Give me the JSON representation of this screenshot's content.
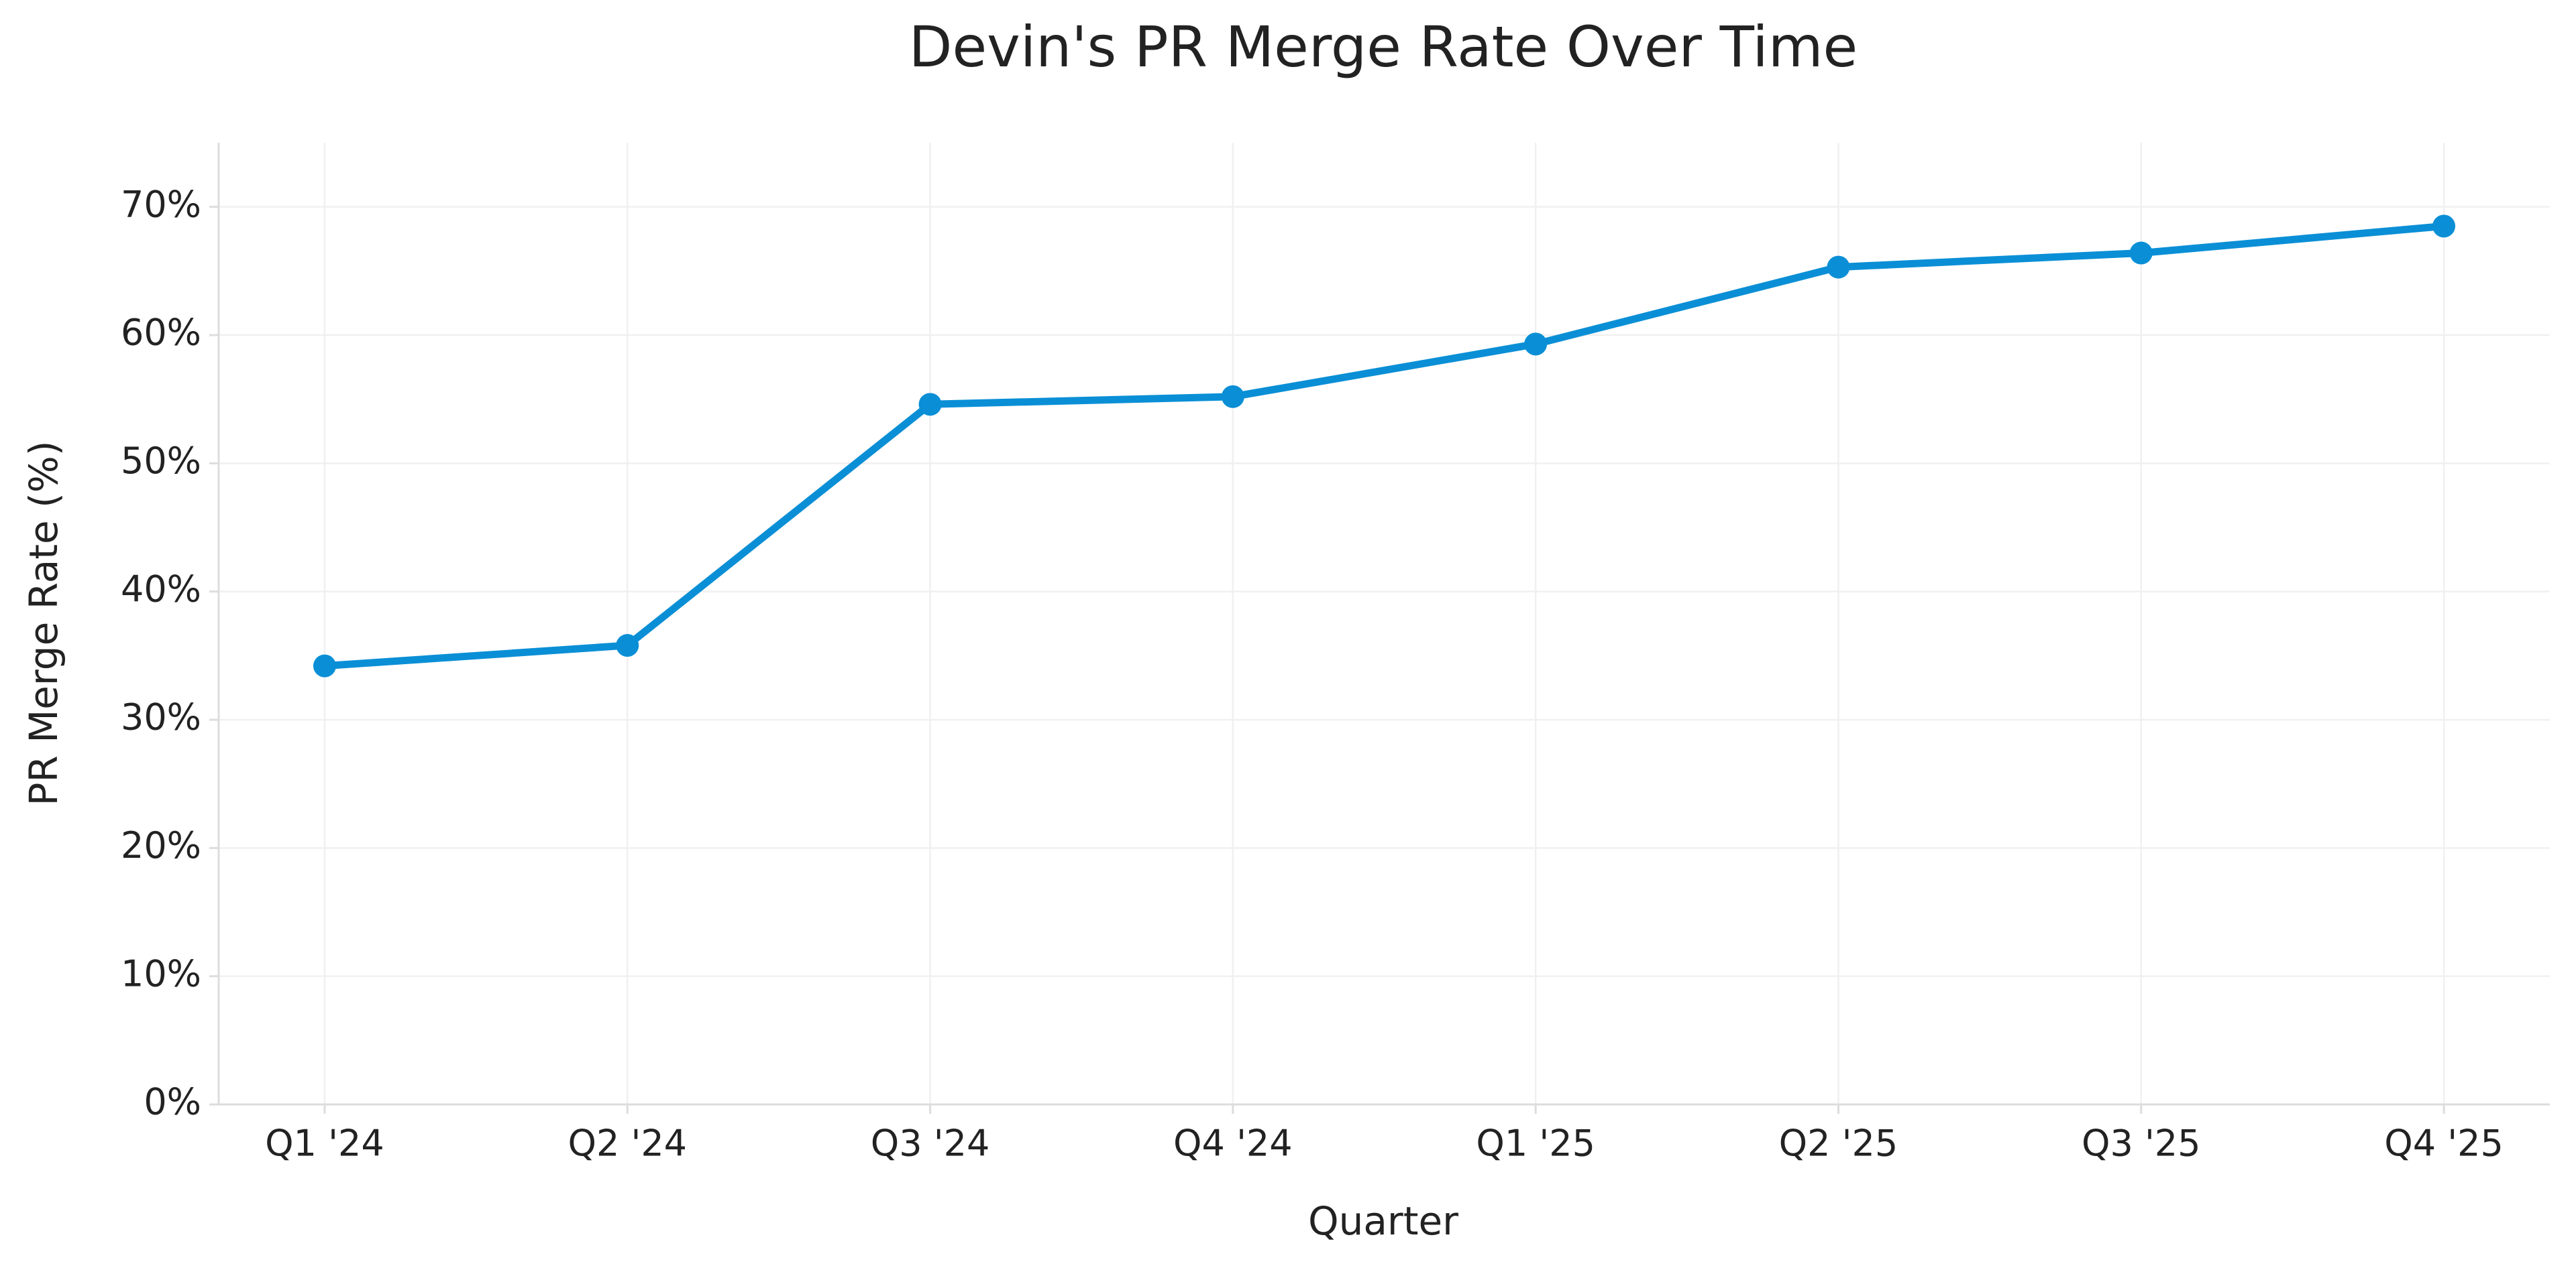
{
  "chart_data": {
    "type": "line",
    "title": "Devin's PR Merge Rate Over Time",
    "x_label": "Quarter",
    "y_label": "PR Merge Rate (%)",
    "categories": [
      "Q1 '24",
      "Q2 '24",
      "Q3 '24",
      "Q4 '24",
      "Q1 '25",
      "Q2 '25",
      "Q3 '25",
      "Q4 '25"
    ],
    "values": [
      34.2,
      35.8,
      54.6,
      55.2,
      59.3,
      65.3,
      66.4,
      68.5
    ],
    "color": "#0a8fd6",
    "ylim": [
      0,
      75
    ],
    "yticks": [
      {
        "value": 0,
        "label": "0%"
      },
      {
        "value": 10,
        "label": "10%"
      },
      {
        "value": 20,
        "label": "20%"
      },
      {
        "value": 30,
        "label": "30%"
      },
      {
        "value": 40,
        "label": "40%"
      },
      {
        "value": 50,
        "label": "50%"
      },
      {
        "value": 60,
        "label": "60%"
      },
      {
        "value": 70,
        "label": "70%"
      }
    ],
    "grid": true
  }
}
